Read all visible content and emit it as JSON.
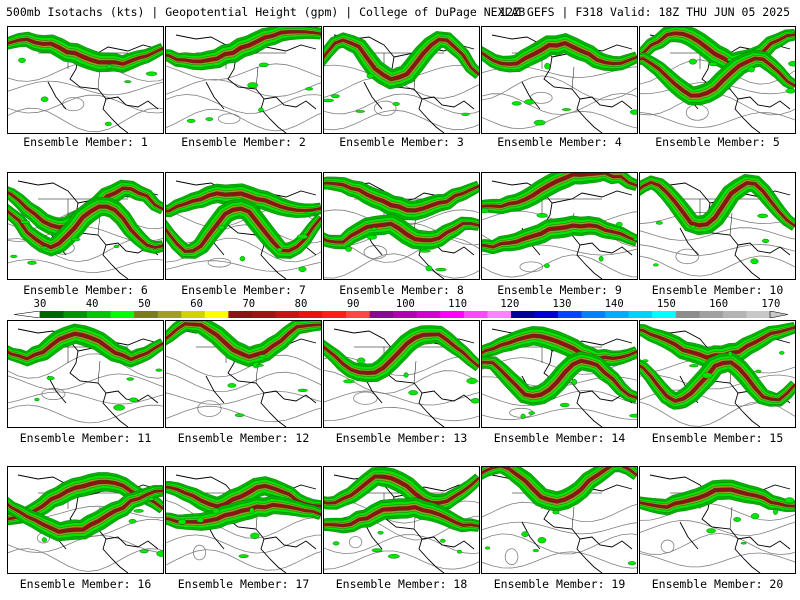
{
  "header": {
    "left": "500mb Isotachs (kts) | Geopotential Height (gpm) | College of DuPage NEXLAB",
    "right": "12Z GEFS | F318 Valid: 18Z THU JUN 05 2025"
  },
  "panel_caption_prefix": "Ensemble Member:",
  "members": [
    {
      "label": "Ensemble Member: 1"
    },
    {
      "label": "Ensemble Member: 2"
    },
    {
      "label": "Ensemble Member: 3"
    },
    {
      "label": "Ensemble Member: 4"
    },
    {
      "label": "Ensemble Member: 5"
    },
    {
      "label": "Ensemble Member: 6"
    },
    {
      "label": "Ensemble Member: 7"
    },
    {
      "label": "Ensemble Member: 8"
    },
    {
      "label": "Ensemble Member: 9"
    },
    {
      "label": "Ensemble Member: 10"
    },
    {
      "label": "Ensemble Member: 11"
    },
    {
      "label": "Ensemble Member: 12"
    },
    {
      "label": "Ensemble Member: 13"
    },
    {
      "label": "Ensemble Member: 14"
    },
    {
      "label": "Ensemble Member: 15"
    },
    {
      "label": "Ensemble Member: 16"
    },
    {
      "label": "Ensemble Member: 17"
    },
    {
      "label": "Ensemble Member: 18"
    },
    {
      "label": "Ensemble Member: 19"
    },
    {
      "label": "Ensemble Member: 20"
    }
  ],
  "colorbar": {
    "labels": [
      "30",
      "40",
      "50",
      "60",
      "70",
      "80",
      "90",
      "100",
      "110",
      "120",
      "130",
      "140",
      "150",
      "160",
      "170"
    ],
    "colors": [
      "#006400",
      "#009600",
      "#00c800",
      "#00ff00",
      "#7a7a1e",
      "#a0a020",
      "#d2d200",
      "#ffff00",
      "#8c1414",
      "#a01414",
      "#c81414",
      "#e61414",
      "#ff1e1e",
      "#ff4646",
      "#8c0a8c",
      "#b400b4",
      "#d200d2",
      "#ff00ff",
      "#ff46ff",
      "#ff82ff",
      "#0000a0",
      "#0000d2",
      "#0046ff",
      "#0082ff",
      "#00aaff",
      "#00d2ff",
      "#00ffff",
      "#8c8c8c",
      "#a0a0a0",
      "#b4b4b4",
      "#c8c8c8"
    ]
  },
  "map_colors": {
    "jet_weak": "#00b400",
    "jet_mid": "#00e600",
    "jet_strong": "#9a9a2a",
    "jet_core": "#8c1414",
    "height_contour": "#808080",
    "coastline": "#000000"
  }
}
